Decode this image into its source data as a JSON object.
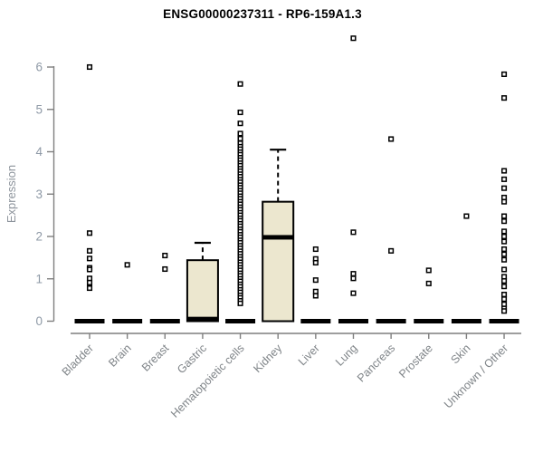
{
  "chart": {
    "title": "ENSG00000237311 - RP6-159A1.3",
    "ylabel": "Expression"
  },
  "colors": {
    "box_fill": "#ECE7CF",
    "box_stroke": "#000000",
    "point_stroke": "#000000",
    "point_fill": "#ffffff",
    "axis_line": "#7f7f7f",
    "y_tick_label": "#8e99a6",
    "x_tick_label": "#7f8488",
    "ylabel_color": "#8d949c"
  },
  "chart_data": {
    "type": "boxplot",
    "title": "ENSG00000237311 - RP6-159A1.3",
    "xlabel": "",
    "ylabel": "Expression",
    "ylim": [
      0,
      6
    ],
    "yticks": [
      0,
      1,
      2,
      3,
      4,
      5,
      6
    ],
    "grid": false,
    "legend": false,
    "categories": [
      "Bladder",
      "Brain",
      "Breast",
      "Gastric",
      "Hematopoietic cells",
      "Kidney",
      "Liver",
      "Lung",
      "Pancreas",
      "Prostate",
      "Skin",
      "Unknown / Other"
    ],
    "series": [
      {
        "category": "Bladder",
        "box": {
          "q1": 0,
          "median": 0,
          "q3": 0,
          "whisker_low": 0,
          "whisker_high": 0
        },
        "points": [
          6.0,
          2.08,
          1.66,
          1.48,
          1.26,
          1.22,
          1.01,
          0.91,
          0.78
        ]
      },
      {
        "category": "Brain",
        "box": {
          "q1": 0,
          "median": 0,
          "q3": 0,
          "whisker_low": 0,
          "whisker_high": 0
        },
        "points": [
          1.33
        ]
      },
      {
        "category": "Breast",
        "box": {
          "q1": 0,
          "median": 0,
          "q3": 0,
          "whisker_low": 0,
          "whisker_high": 0
        },
        "points": [
          1.55,
          1.23
        ]
      },
      {
        "category": "Gastric",
        "box": {
          "q1": 0,
          "median": 0.05,
          "q3": 1.44,
          "whisker_low": 0,
          "whisker_high": 1.85
        },
        "points": []
      },
      {
        "category": "Hematopoietic cells",
        "box": {
          "q1": 0,
          "median": 0,
          "q3": 0,
          "whisker_low": 0,
          "whisker_high": 0
        },
        "points": [
          5.6,
          4.93,
          4.67,
          4.43,
          4.31,
          4.2,
          4.12,
          4.06,
          3.99,
          3.93,
          3.86,
          3.8,
          3.73,
          3.67,
          3.6,
          3.54,
          3.47,
          3.41,
          3.34,
          3.28,
          3.21,
          3.15,
          3.08,
          3.02,
          2.95,
          2.89,
          2.82,
          2.76,
          2.69,
          2.63,
          2.56,
          2.5,
          2.43,
          2.37,
          2.3,
          2.24,
          2.17,
          2.11,
          2.04,
          1.98,
          1.91,
          1.85,
          1.78,
          1.72,
          1.65,
          1.59,
          1.52,
          1.46,
          1.39,
          1.33,
          1.26,
          1.2,
          1.13,
          1.07,
          1.0,
          0.94,
          0.87,
          0.81,
          0.74,
          0.68,
          0.61,
          0.55,
          0.48,
          0.42
        ]
      },
      {
        "category": "Kidney",
        "box": {
          "q1": 0,
          "median": 1.98,
          "q3": 2.82,
          "whisker_low": 0,
          "whisker_high": 4.05
        },
        "points": []
      },
      {
        "category": "Liver",
        "box": {
          "q1": 0,
          "median": 0,
          "q3": 0,
          "whisker_low": 0,
          "whisker_high": 0
        },
        "points": [
          1.7,
          1.47,
          1.38,
          0.97,
          0.7,
          0.6
        ]
      },
      {
        "category": "Lung",
        "box": {
          "q1": 0,
          "median": 0,
          "q3": 0,
          "whisker_low": 0,
          "whisker_high": 0
        },
        "points": [
          6.68,
          2.1,
          1.12,
          1.01,
          0.66
        ]
      },
      {
        "category": "Pancreas",
        "box": {
          "q1": 0,
          "median": 0,
          "q3": 0,
          "whisker_low": 0,
          "whisker_high": 0
        },
        "points": [
          4.3,
          1.66
        ]
      },
      {
        "category": "Prostate",
        "box": {
          "q1": 0,
          "median": 0,
          "q3": 0,
          "whisker_low": 0,
          "whisker_high": 0
        },
        "points": [
          1.2,
          0.89
        ]
      },
      {
        "category": "Skin",
        "box": {
          "q1": 0,
          "median": 0,
          "q3": 0,
          "whisker_low": 0,
          "whisker_high": 0
        },
        "points": [
          2.48
        ]
      },
      {
        "category": "Unknown / Other",
        "box": {
          "q1": 0,
          "median": 0,
          "q3": 0,
          "whisker_low": 0,
          "whisker_high": 0
        },
        "points": [
          5.83,
          5.27,
          3.55,
          3.35,
          3.14,
          2.92,
          2.82,
          2.48,
          2.36,
          2.12,
          2.0,
          1.88,
          1.7,
          1.58,
          1.45,
          1.22,
          1.05,
          0.95,
          0.82,
          0.63,
          0.52,
          0.4,
          0.3,
          0.24
        ]
      }
    ]
  }
}
